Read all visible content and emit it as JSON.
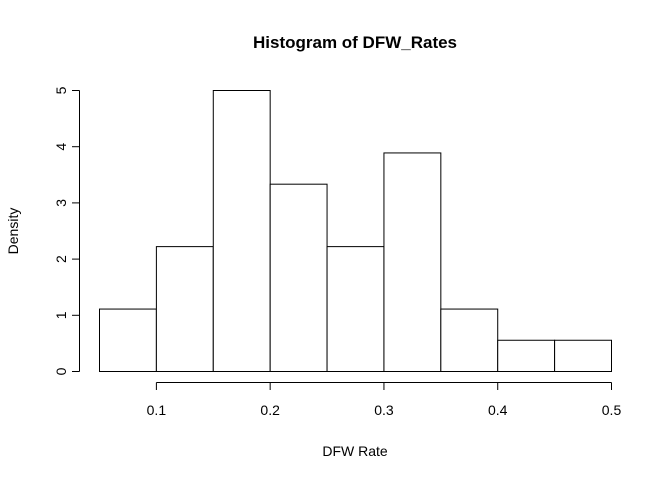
{
  "chart_data": {
    "type": "bar",
    "subtype": "histogram",
    "title": "Histogram of DFW_Rates",
    "xlabel": "DFW Rate",
    "ylabel": "Density",
    "bins": [
      {
        "x0": 0.05,
        "x1": 0.1,
        "value": 1.111
      },
      {
        "x0": 0.1,
        "x1": 0.15,
        "value": 2.222
      },
      {
        "x0": 0.15,
        "x1": 0.2,
        "value": 5.0
      },
      {
        "x0": 0.2,
        "x1": 0.25,
        "value": 3.333
      },
      {
        "x0": 0.25,
        "x1": 0.3,
        "value": 2.222
      },
      {
        "x0": 0.3,
        "x1": 0.35,
        "value": 3.889
      },
      {
        "x0": 0.35,
        "x1": 0.4,
        "value": 1.111
      },
      {
        "x0": 0.4,
        "x1": 0.45,
        "value": 0.556
      },
      {
        "x0": 0.45,
        "x1": 0.5,
        "value": 0.556
      }
    ],
    "xticks": [
      {
        "value": 0.1,
        "label": "0.1"
      },
      {
        "value": 0.2,
        "label": "0.2"
      },
      {
        "value": 0.3,
        "label": "0.3"
      },
      {
        "value": 0.4,
        "label": "0.4"
      },
      {
        "value": 0.5,
        "label": "0.5"
      }
    ],
    "yticks": [
      {
        "value": 0,
        "label": "0"
      },
      {
        "value": 1,
        "label": "1"
      },
      {
        "value": 2,
        "label": "2"
      },
      {
        "value": 3,
        "label": "3"
      },
      {
        "value": 4,
        "label": "4"
      },
      {
        "value": 5,
        "label": "5"
      }
    ],
    "xlim": [
      0.05,
      0.5
    ],
    "ylim": [
      0,
      5
    ],
    "grid": false,
    "legend": "none"
  }
}
